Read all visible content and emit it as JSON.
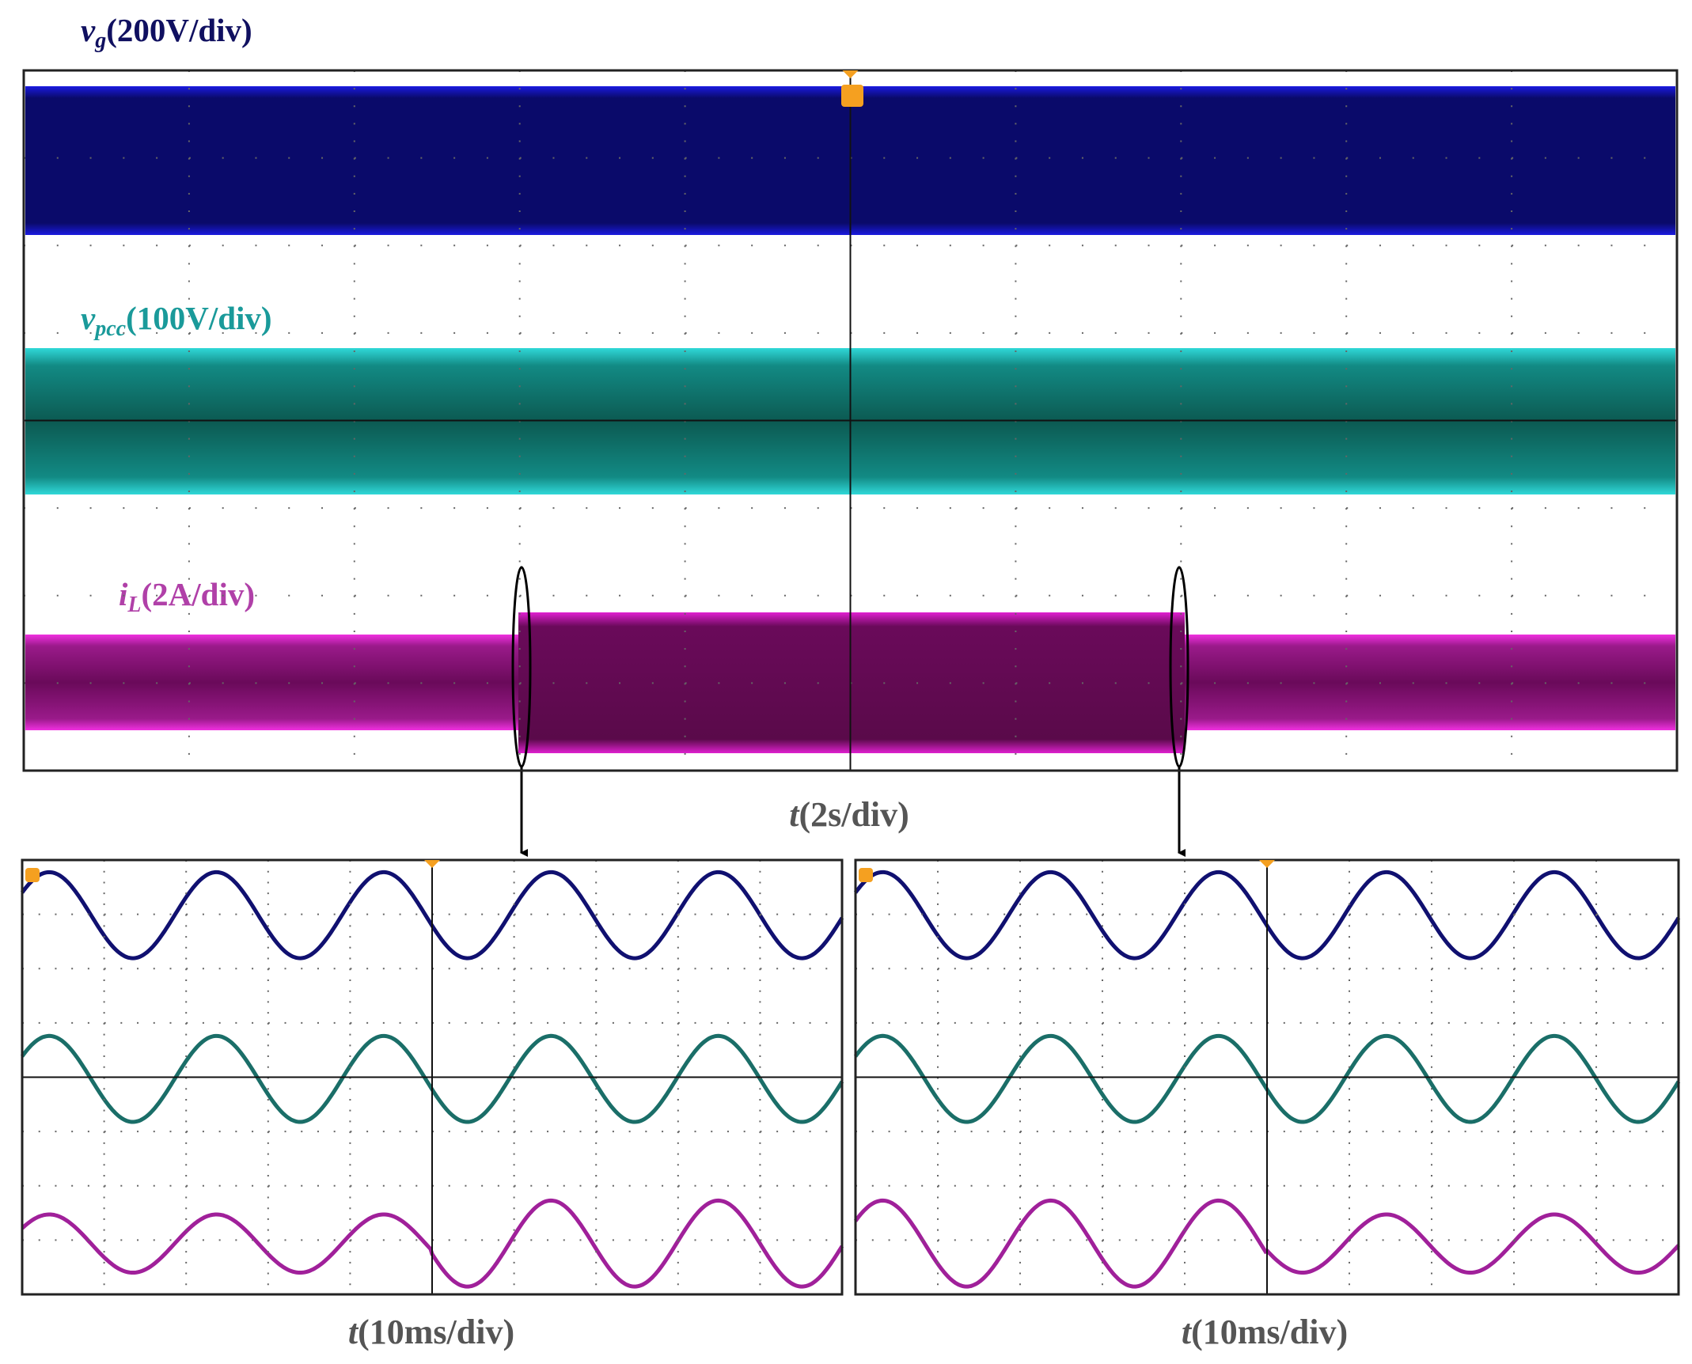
{
  "traces": [
    {
      "symbol": "v",
      "subscript": "g",
      "scale": "(200V/div)"
    },
    {
      "symbol": "v",
      "subscript": "pcc",
      "scale": "(100V/div)"
    },
    {
      "symbol": "i",
      "subscript": "L",
      "scale": "(2A/div)"
    }
  ],
  "time_axes": [
    {
      "symbol": "t",
      "scale": "(2s/div)"
    },
    {
      "symbol": "t",
      "scale": "(10ms/div)"
    },
    {
      "symbol": "t",
      "scale": "(10ms/div)"
    }
  ]
}
